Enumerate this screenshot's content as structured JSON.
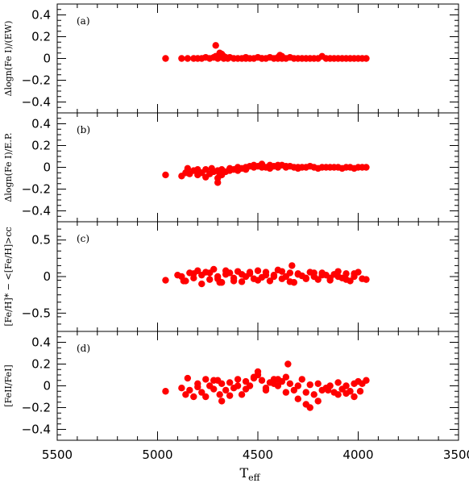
{
  "chart_data": {
    "type": "scatter",
    "x_axis": {
      "label": "T",
      "label_sub": "eff",
      "range": [
        5500,
        3500
      ],
      "ticks": [
        5500,
        5000,
        4500,
        4000,
        3500
      ],
      "tick_labels": [
        "5500",
        "5000",
        "4500",
        "4000",
        "3500"
      ]
    },
    "marker_color": "#ff0000",
    "panels": [
      {
        "tag": "(a)",
        "ylabel": "Δlogn(Fe I)/(EW)",
        "ylim": [
          -0.5,
          0.5
        ],
        "yticks": [
          -0.4,
          -0.2,
          0,
          0.2,
          0.4
        ],
        "ytick_labels": [
          "−0.4",
          "−0.2",
          "0",
          "0.2",
          "0.4"
        ],
        "x": [
          4960,
          4880,
          4850,
          4820,
          4800,
          4780,
          4760,
          4740,
          4720,
          4710,
          4700,
          4690,
          4680,
          4670,
          4660,
          4650,
          4640,
          4620,
          4600,
          4580,
          4560,
          4540,
          4520,
          4500,
          4480,
          4460,
          4440,
          4420,
          4400,
          4390,
          4380,
          4360,
          4340,
          4320,
          4300,
          4280,
          4260,
          4240,
          4220,
          4200,
          4180,
          4160,
          4140,
          4120,
          4100,
          4080,
          4060,
          4040,
          4020,
          4000,
          3980,
          3960,
          4710,
          4690,
          4670,
          4560,
          4480,
          4400,
          4380
        ],
        "y": [
          0.0,
          0.0,
          0.0,
          0.0,
          0.0,
          0.0,
          0.01,
          0.0,
          0.01,
          0.02,
          0.0,
          0.01,
          0.04,
          0.02,
          0.01,
          0.0,
          0.01,
          0.0,
          0.0,
          0.0,
          0.01,
          0.0,
          0.0,
          0.01,
          0.0,
          0.0,
          0.01,
          0.0,
          0.0,
          0.03,
          0.02,
          0.0,
          0.01,
          0.0,
          0.0,
          0.0,
          0.0,
          0.0,
          0.0,
          0.0,
          0.02,
          0.0,
          0.0,
          0.0,
          0.0,
          0.0,
          0.0,
          0.0,
          0.0,
          0.0,
          0.0,
          0.0,
          0.12,
          0.05,
          0.0,
          0.0,
          0.0,
          0.01,
          0.0
        ]
      },
      {
        "tag": "(b)",
        "ylabel": "Δlogn(Fe I)/E.P.",
        "ylim": [
          -0.5,
          0.5
        ],
        "yticks": [
          -0.4,
          -0.2,
          0,
          0.2,
          0.4
        ],
        "ytick_labels": [
          "−0.4",
          "−0.2",
          "0",
          "0.2",
          "0.4"
        ],
        "x": [
          4960,
          4880,
          4860,
          4840,
          4820,
          4800,
          4780,
          4760,
          4740,
          4720,
          4700,
          4690,
          4680,
          4660,
          4640,
          4620,
          4600,
          4580,
          4560,
          4540,
          4520,
          4500,
          4480,
          4460,
          4440,
          4420,
          4400,
          4380,
          4360,
          4340,
          4320,
          4300,
          4280,
          4260,
          4240,
          4220,
          4200,
          4180,
          4160,
          4140,
          4120,
          4100,
          4080,
          4060,
          4040,
          4020,
          4000,
          3980,
          3960,
          4850,
          4800,
          4760,
          4730,
          4700,
          4680,
          4640,
          4600,
          4560,
          4520,
          4480,
          4440,
          4400,
          4360,
          4300,
          4700
        ],
        "y": [
          -0.07,
          -0.08,
          -0.05,
          -0.06,
          -0.03,
          -0.07,
          -0.05,
          -0.02,
          -0.06,
          -0.04,
          -0.03,
          -0.06,
          -0.02,
          -0.04,
          -0.01,
          -0.02,
          0.0,
          -0.01,
          0.0,
          0.01,
          0.02,
          0.01,
          0.0,
          0.0,
          0.02,
          0.01,
          0.0,
          0.02,
          0.0,
          0.01,
          0.0,
          -0.01,
          0.0,
          0.0,
          0.01,
          0.0,
          -0.01,
          0.0,
          0.0,
          0.0,
          0.0,
          0.0,
          -0.01,
          0.0,
          0.0,
          -0.01,
          0.0,
          0.0,
          0.0,
          -0.01,
          -0.02,
          -0.09,
          -0.01,
          -0.1,
          -0.07,
          -0.03,
          -0.03,
          -0.02,
          0.0,
          0.03,
          -0.01,
          0.02,
          0.01,
          0.0,
          -0.14
        ]
      },
      {
        "tag": "(c)",
        "ylabel": "[Fe/H]* − <[Fe/H]>cc",
        "ylim": [
          -0.75,
          0.75
        ],
        "yticks": [
          -0.5,
          0,
          0.5
        ],
        "ytick_labels": [
          "−0.5",
          "0",
          "0.5"
        ],
        "x": [
          4960,
          4900,
          4880,
          4860,
          4840,
          4820,
          4800,
          4780,
          4760,
          4740,
          4720,
          4700,
          4680,
          4660,
          4640,
          4620,
          4600,
          4580,
          4560,
          4540,
          4520,
          4500,
          4480,
          4460,
          4440,
          4420,
          4400,
          4380,
          4360,
          4340,
          4320,
          4300,
          4280,
          4260,
          4240,
          4220,
          4200,
          4180,
          4160,
          4140,
          4120,
          4100,
          4080,
          4060,
          4040,
          4020,
          4000,
          3980,
          3960,
          4870,
          4820,
          4780,
          4740,
          4700,
          4660,
          4620,
          4580,
          4540,
          4500,
          4460,
          4420,
          4380,
          4340,
          4300,
          4260,
          4220,
          4180,
          4140,
          4100,
          4060,
          4020,
          4330,
          4690
        ],
        "y": [
          -0.05,
          0.02,
          0.0,
          -0.06,
          0.05,
          -0.02,
          0.08,
          0.02,
          0.06,
          -0.04,
          0.1,
          0.0,
          -0.08,
          0.03,
          0.05,
          -0.02,
          0.07,
          -0.07,
          0.0,
          0.04,
          -0.03,
          0.08,
          -0.01,
          0.06,
          -0.06,
          0.02,
          0.09,
          -0.03,
          0.0,
          0.05,
          -0.08,
          0.04,
          0.01,
          -0.02,
          0.06,
          0.0,
          -0.04,
          0.05,
          0.02,
          -0.05,
          0.03,
          0.07,
          -0.02,
          0.04,
          -0.06,
          0.0,
          0.06,
          -0.03,
          -0.04,
          -0.06,
          0.04,
          -0.1,
          0.05,
          -0.03,
          0.08,
          -0.06,
          0.03,
          0.06,
          -0.05,
          0.02,
          0.0,
          0.07,
          -0.07,
          0.03,
          -0.03,
          0.05,
          0.02,
          -0.02,
          0.0,
          -0.04,
          0.04,
          0.15,
          -0.08
        ]
      },
      {
        "tag": "(d)",
        "ylabel": "[FeII/FeI]",
        "ylim": [
          -0.5,
          0.5
        ],
        "yticks": [
          -0.4,
          -0.2,
          0,
          0.2,
          0.4
        ],
        "ytick_labels": [
          "−0.4",
          "−0.2",
          "0",
          "0.2",
          "0.4"
        ],
        "x": [
          4960,
          4880,
          4860,
          4840,
          4820,
          4800,
          4780,
          4760,
          4740,
          4720,
          4700,
          4690,
          4680,
          4660,
          4640,
          4620,
          4600,
          4580,
          4560,
          4540,
          4520,
          4500,
          4480,
          4460,
          4440,
          4420,
          4400,
          4380,
          4360,
          4350,
          4340,
          4320,
          4300,
          4280,
          4260,
          4240,
          4220,
          4200,
          4180,
          4160,
          4140,
          4120,
          4100,
          4080,
          4060,
          4040,
          4020,
          4000,
          3980,
          3960,
          4850,
          4800,
          4760,
          4720,
          4680,
          4640,
          4600,
          4560,
          4520,
          4500,
          4460,
          4420,
          4400,
          4360,
          4300,
          4260,
          4240,
          4200,
          4150,
          4100,
          4060,
          4020,
          3990
        ],
        "y": [
          -0.05,
          -0.02,
          -0.08,
          -0.04,
          -0.1,
          0.02,
          -0.06,
          0.06,
          0.0,
          -0.03,
          0.05,
          -0.08,
          0.02,
          -0.04,
          0.03,
          -0.02,
          0.06,
          -0.08,
          0.04,
          0.0,
          0.08,
          0.1,
          0.05,
          -0.02,
          0.03,
          0.06,
          0.0,
          0.04,
          0.08,
          0.2,
          0.02,
          -0.04,
          0.0,
          0.06,
          -0.06,
          0.01,
          -0.08,
          0.02,
          -0.04,
          -0.02,
          0.0,
          -0.06,
          0.03,
          -0.03,
          0.0,
          -0.05,
          0.02,
          0.04,
          0.02,
          0.05,
          0.07,
          -0.01,
          -0.1,
          0.05,
          -0.14,
          -0.09,
          0.0,
          -0.03,
          0.07,
          0.13,
          -0.04,
          0.02,
          0.06,
          -0.06,
          -0.12,
          -0.17,
          -0.2,
          -0.14,
          -0.04,
          -0.08,
          -0.07,
          -0.1,
          -0.05
        ]
      }
    ]
  }
}
